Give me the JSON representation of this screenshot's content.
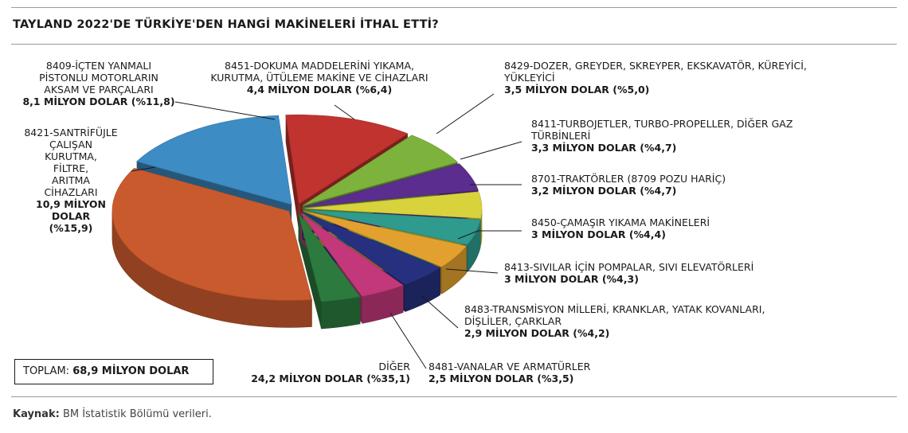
{
  "title": "TAYLAND 2022'DE TÜRKİYE'DEN HANGİ MAKİNELERİ İTHAL ETTİ?",
  "total": {
    "label": "TOPLAM:",
    "value": "68,9 MİLYON DOLAR"
  },
  "source": {
    "label": "Kaynak:",
    "text": "BM İstatistik Bölümü verileri."
  },
  "chart_data": {
    "type": "pie",
    "unit": "MİLYON DOLAR",
    "slices": [
      {
        "lines": [
          "8451-DOKUMA MADDELERİNİ YIKAMA,",
          "KURUTMA, ÜTÜLEME MAKİNE VE CİHAZLARI"
        ],
        "value_text": "4,4 MİLYON DOLAR (%6,4)",
        "value": 4.4,
        "percent": 6.4,
        "color": "#7db33c"
      },
      {
        "lines": [
          "8429-DOZER, GREYDER, SKREYPER, EKSKAVATÖR, KÜREYİCİ,",
          "YÜKLEYİCİ"
        ],
        "value_text": "3,5 MİLYON DOLAR (%5,0)",
        "value": 3.5,
        "percent": 5.0,
        "color": "#5b2d8e"
      },
      {
        "lines": [
          "8411-TURBOJETLER, TURBO-PROPELLER, DİĞER GAZ",
          "TÜRBİNLERİ"
        ],
        "value_text": "3,3 MİLYON DOLAR (%4,7)",
        "value": 3.3,
        "percent": 4.7,
        "color": "#d8d23c"
      },
      {
        "lines": [
          "8701-TRAKTÖRLER (8709 POZU HARİÇ)"
        ],
        "value_text": "3,2 MİLYON DOLAR (%4,7)",
        "value": 3.2,
        "percent": 4.7,
        "color": "#2f9a8e"
      },
      {
        "lines": [
          "8450-ÇAMAŞIR YIKAMA MAKİNELERİ"
        ],
        "value_text": "3 MİLYON DOLAR (%4,4)",
        "value": 3.0,
        "percent": 4.4,
        "color": "#e2a12e"
      },
      {
        "lines": [
          "8413-SIVILAR İÇİN POMPALAR, SIVI ELEVATÖRLERİ"
        ],
        "value_text": "3 MİLYON DOLAR (%4,3)",
        "value": 3.0,
        "percent": 4.3,
        "color": "#26307f"
      },
      {
        "lines": [
          "8483-TRANSMİSYON MİLLERİ, KRANKLAR, YATAK KOVANLARI,",
          "DİŞLİLER, ÇARKLAR"
        ],
        "value_text": "2,9 MİLYON DOLAR (%4,2)",
        "value": 2.9,
        "percent": 4.2,
        "color": "#c2387a"
      },
      {
        "lines": [
          "8481-VANALAR VE ARMATÜRLER"
        ],
        "value_text": "2,5 MİLYON DOLAR (%3,5)",
        "value": 2.5,
        "percent": 3.5,
        "color": "#2d7a3e"
      },
      {
        "lines": [
          "DİĞER"
        ],
        "value_text": "24,2 MİLYON DOLAR (%35,1)",
        "value": 24.2,
        "percent": 35.1,
        "color": "#c95a2e"
      },
      {
        "lines": [
          "8421-SANTRİFÜJLE",
          "ÇALIŞAN",
          "KURUTMA,",
          "FİLTRE,",
          "ARITMA",
          "CİHAZLARI"
        ],
        "value_text_lines": [
          "10,9 MİLYON",
          "DOLAR",
          "(%15,9)"
        ],
        "value": 10.9,
        "percent": 15.9,
        "color": "#3d8cc4"
      },
      {
        "lines": [
          "8409-İÇTEN YANMALI",
          "PİSTONLU MOTORLARIN",
          "AKSAM VE PARÇALARI"
        ],
        "value_text": "8,1 MİLYON DOLAR (%11,8)",
        "value": 8.1,
        "percent": 11.8,
        "color": "#c0332f"
      }
    ]
  }
}
